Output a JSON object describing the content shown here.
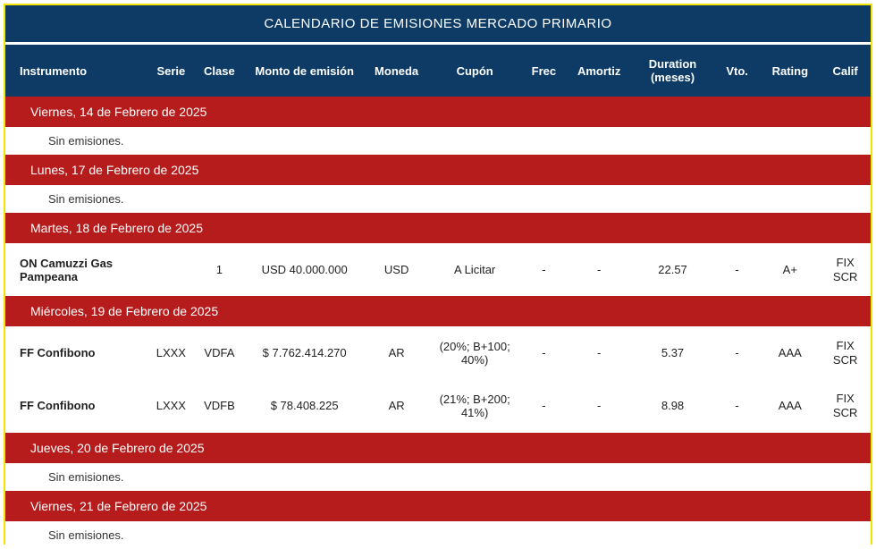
{
  "title": "CALENDARIO DE EMISIONES MERCADO PRIMARIO",
  "columns": {
    "instrumento": "Instrumento",
    "serie": "Serie",
    "clase": "Clase",
    "monto": "Monto de emisión",
    "moneda": "Moneda",
    "cupon": "Cupón",
    "frec": "Frec",
    "amortiz": "Amortiz",
    "duration": "Duration (meses)",
    "vto": "Vto.",
    "rating": "Rating",
    "calif": "Calif"
  },
  "empty_text": "Sin emisiones.",
  "colwidths": {
    "instrumento": "155",
    "serie": "50",
    "clase": "55",
    "monto": "130",
    "moneda": "70",
    "cupon": "100",
    "frec": "50",
    "amortiz": "70",
    "duration": "90",
    "vto": "50",
    "rating": "65",
    "calif": "55"
  },
  "days": [
    {
      "date": "Viernes, 14 de Febrero de 2025",
      "rows": []
    },
    {
      "date": "Lunes, 17 de Febrero de 2025",
      "rows": []
    },
    {
      "date": "Martes, 18 de Febrero de 2025",
      "rows": [
        {
          "instrumento": "ON Camuzzi Gas Pampeana",
          "serie": "",
          "clase": "1",
          "monto": "USD 40.000.000",
          "moneda": "USD",
          "cupon": "A Licitar",
          "frec": "-",
          "amortiz": "-",
          "duration": "22.57",
          "vto": "-",
          "rating": "A+",
          "calif1": "FIX",
          "calif2": "SCR"
        }
      ]
    },
    {
      "date": "Miércoles, 19 de Febrero de 2025",
      "rows": [
        {
          "instrumento": "FF Confibono",
          "serie": "LXXX",
          "clase": "VDFA",
          "monto": "$ 7.762.414.270",
          "moneda": "AR",
          "cupon": "(20%; B+100; 40%)",
          "frec": "-",
          "amortiz": "-",
          "duration": "5.37",
          "vto": "-",
          "rating": "AAA",
          "calif1": "FIX",
          "calif2": "SCR"
        },
        {
          "instrumento": "FF Confibono",
          "serie": "LXXX",
          "clase": "VDFB",
          "monto": "$ 78.408.225",
          "moneda": "AR",
          "cupon": "(21%; B+200; 41%)",
          "frec": "-",
          "amortiz": "-",
          "duration": "8.98",
          "vto": "-",
          "rating": "AAA",
          "calif1": "FIX",
          "calif2": "SCR"
        }
      ]
    },
    {
      "date": "Jueves, 20 de Febrero de 2025",
      "rows": []
    },
    {
      "date": "Viernes, 21 de Febrero de 2025",
      "rows": []
    }
  ],
  "colors": {
    "header_bg": "#0d3b66",
    "date_bg": "#b71c1c",
    "border": "#f2e500",
    "text_light": "#ffffff",
    "text_dark": "#222222"
  }
}
